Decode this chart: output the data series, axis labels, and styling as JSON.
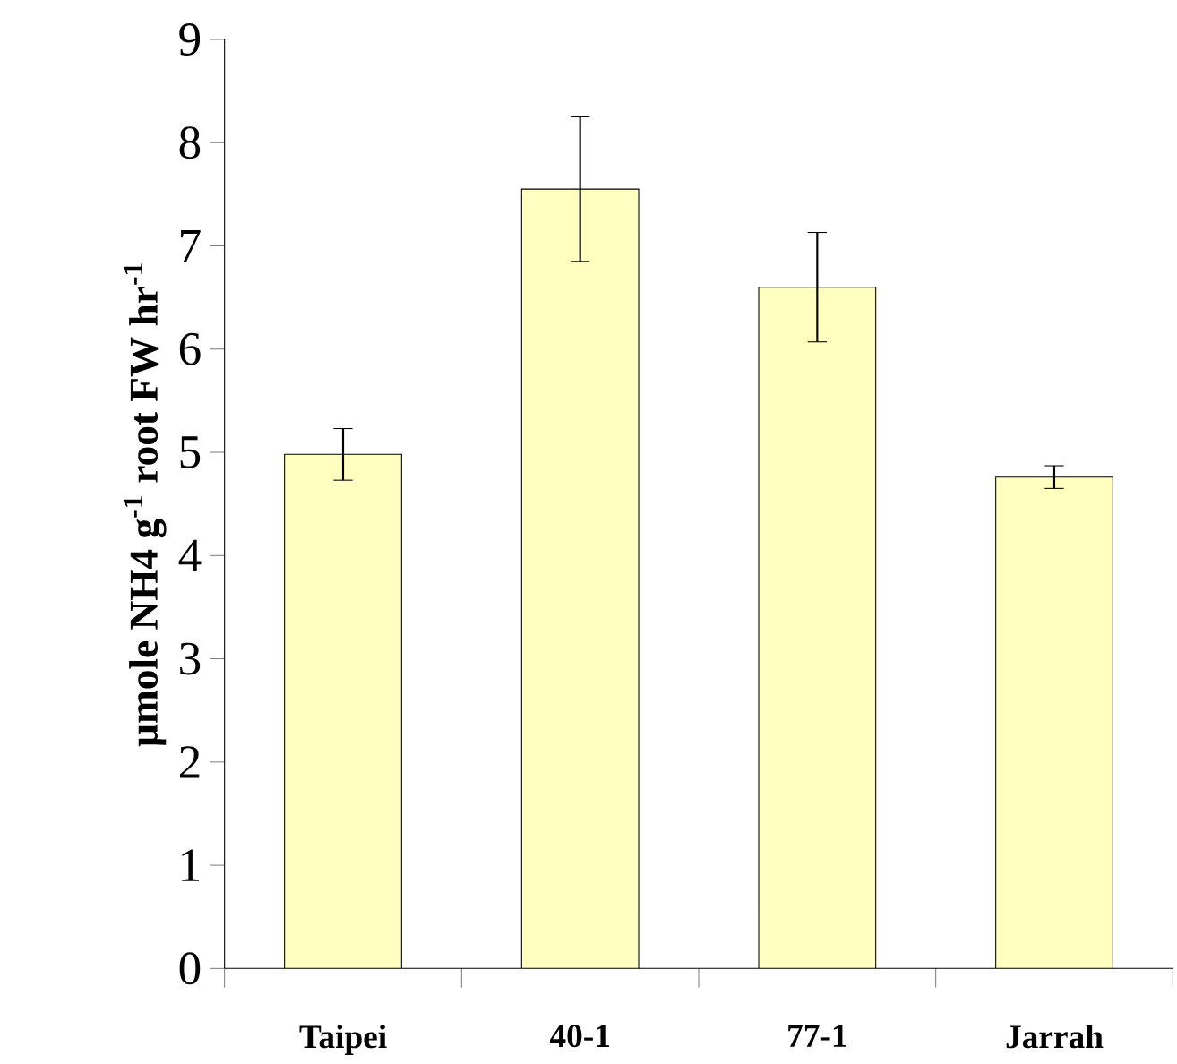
{
  "chart_data": {
    "type": "bar",
    "ylabel": "µmole NH4  g$^{-1}$ root  FW hr$^{-1}$",
    "categories": [
      "Taipei",
      "40-1",
      "77-1",
      "Jarrah"
    ],
    "values": [
      4.98,
      7.55,
      6.6,
      4.76
    ],
    "errors": [
      0.25,
      0.7,
      0.53,
      0.11
    ],
    "color": "#ffffc0",
    "ylim": [
      0,
      9
    ],
    "yticks": [
      0,
      1,
      2,
      3,
      4,
      5,
      6,
      7,
      8,
      9
    ],
    "grid": false
  }
}
